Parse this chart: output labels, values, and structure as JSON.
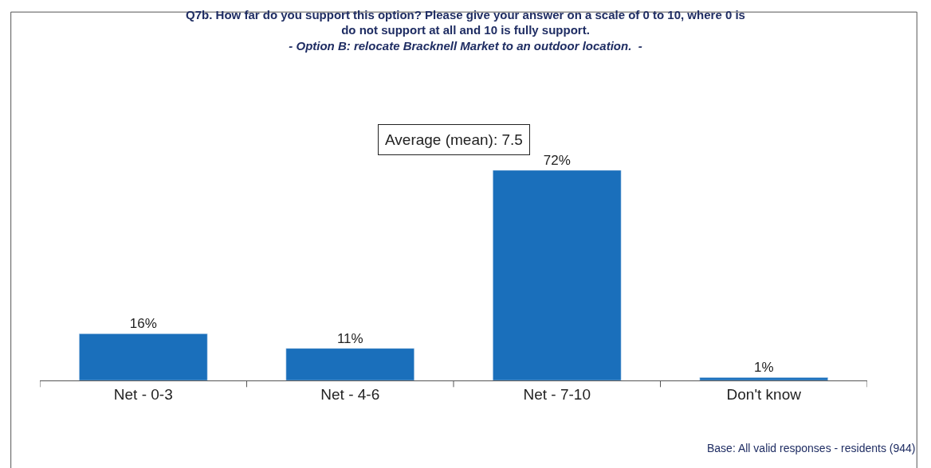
{
  "chart_data": {
    "type": "bar",
    "title": "Q7b. How far do you support this option? Please give your answer on a scale of 0 to 10, where 0 is do not support at all and 10 is fully support.",
    "subtitle": "- Option B: relocate Bracknell Market to an outdoor location.  -",
    "categories": [
      "Net - 0-3",
      "Net - 4-6",
      "Net - 7-10",
      "Don't know"
    ],
    "values": [
      16,
      11,
      72,
      1
    ],
    "value_labels": [
      "16%",
      "11%",
      "72%",
      "1%"
    ],
    "color": "#1a6fbb",
    "annotations": [
      "Average (mean): 7.5",
      "Base: All valid responses - residents (944)"
    ],
    "tick_labels": "x"
  }
}
